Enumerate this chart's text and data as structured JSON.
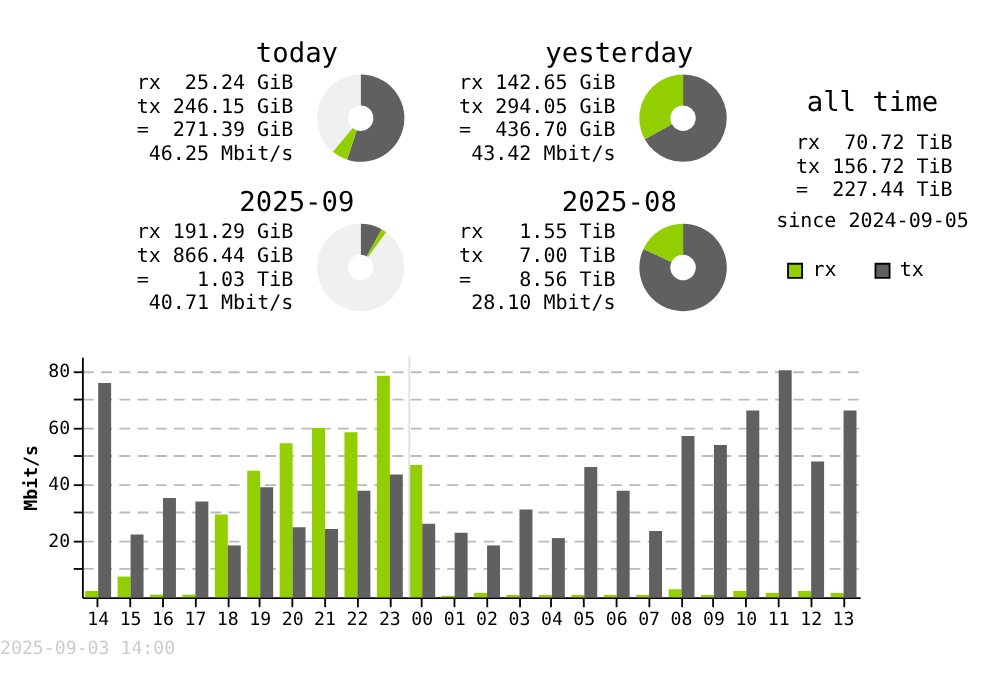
{
  "chart_data": [
    {
      "type": "donut",
      "title": "today",
      "categories": [
        null,
        null,
        null
      ],
      "values": [
        55,
        6,
        39
      ],
      "colors": [
        "#606060",
        "#92ce00",
        "#f0f0f0"
      ],
      "annotations": [
        "rx 25.24 GiB",
        "tx 246.15 GiB",
        "= 271.39 GiB",
        "46.25 Mbit/s"
      ]
    },
    {
      "type": "donut",
      "title": "2025-09",
      "categories": [
        null,
        null,
        null
      ],
      "values": [
        8,
        2,
        90
      ],
      "colors": [
        "#606060",
        "#92ce00",
        "#f0f0f0"
      ],
      "annotations": [
        "rx 191.29 GiB",
        "tx 866.44 GiB",
        "= 1.03 TiB",
        "40.71 Mbit/s"
      ]
    },
    {
      "type": "donut",
      "title": "yesterday",
      "categories": [
        null,
        null
      ],
      "values": [
        67,
        33
      ],
      "colors": [
        "#606060",
        "#92ce00"
      ],
      "annotations": [
        "rx 142.65 GiB",
        "tx 294.05 GiB",
        "= 436.70 GiB",
        "43.42 Mbit/s"
      ]
    },
    {
      "type": "donut",
      "title": "2025-08",
      "categories": [
        null,
        null
      ],
      "values": [
        82,
        18
      ],
      "colors": [
        "#606060",
        "#92ce00"
      ],
      "annotations": [
        "rx 1.55 TiB",
        "tx 7.00 TiB",
        "= 8.56 TiB",
        "28.10 Mbit/s"
      ]
    },
    {
      "type": "other",
      "title": "all time",
      "annotations": [
        "rx 70.72 TiB",
        "tx 156.72 TiB",
        "= 227.44 TiB",
        "since 2024-09-05"
      ]
    },
    {
      "type": "bar",
      "ylabel": "Mbit/s",
      "categories": [
        "14",
        "15",
        "16",
        "17",
        "18",
        "19",
        "20",
        "21",
        "22",
        "23",
        "00",
        "01",
        "02",
        "03",
        "04",
        "05",
        "06",
        "07",
        "08",
        "09",
        "10",
        "11",
        "12",
        "13"
      ],
      "series": [
        {
          "name": "rx",
          "color": "#92ce00",
          "values": [
            2.2,
            7.3,
            0.9,
            0.9,
            29.2,
            44.7,
            54.4,
            59.8,
            58.3,
            78.3,
            46.7,
            0.5,
            1.5,
            0.8,
            0.8,
            0.8,
            0.8,
            0.8,
            2.8,
            0.8,
            2.2,
            1.5,
            2.2,
            1.5
          ]
        },
        {
          "name": "tx",
          "color": "#606060",
          "values": [
            75.7,
            22.2,
            35.1,
            33.8,
            18.3,
            38.9,
            24.7,
            24.1,
            37.6,
            43.4,
            26.0,
            22.8,
            18.3,
            31.0,
            20.9,
            46.0,
            37.6,
            23.4,
            57.0,
            53.8,
            66.0,
            80.2,
            48.0,
            66.0
          ]
        }
      ],
      "ylim": [
        0,
        85
      ],
      "yticks": [
        {
          "value": 10,
          "label": null
        },
        20,
        {
          "value": 30,
          "label": null
        },
        40,
        {
          "value": 50,
          "label": null
        },
        60,
        {
          "value": 70,
          "label": null
        },
        80
      ],
      "grid": "y",
      "legend": "top right",
      "ref_lines": [
        {
          "axis": "x",
          "value": "00",
          "color": "#e0e0e0"
        }
      ],
      "annotations": [
        "2025-09-03 14:00"
      ]
    }
  ]
}
